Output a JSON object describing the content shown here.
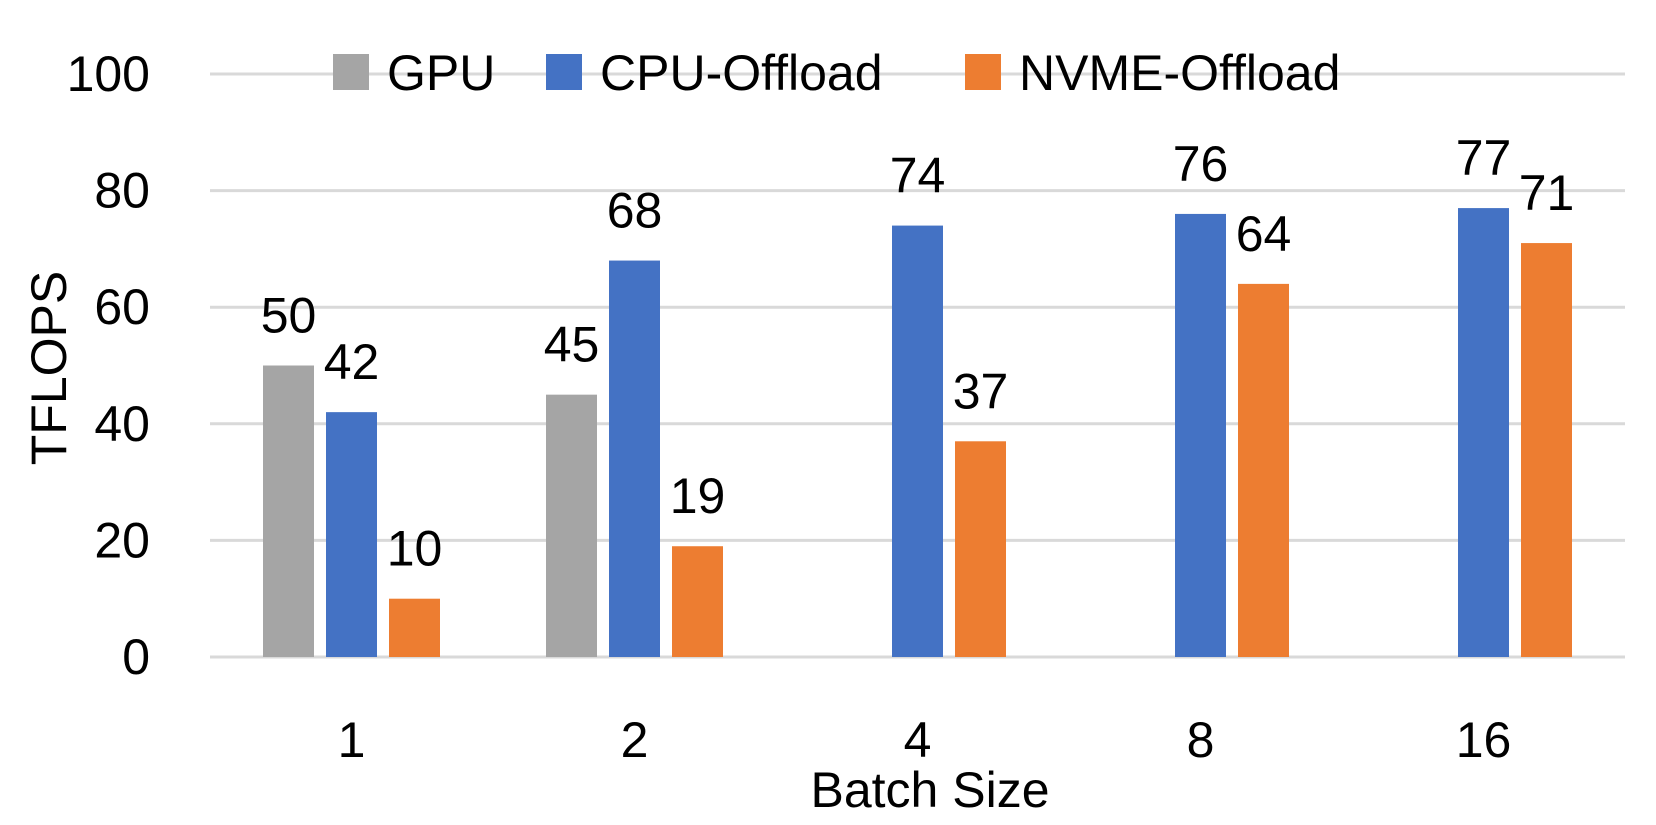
{
  "chart_data": {
    "type": "bar",
    "title": "",
    "xlabel": "Batch Size",
    "ylabel": "TFLOPS",
    "categories": [
      "1",
      "2",
      "4",
      "8",
      "16"
    ],
    "ylim": [
      0,
      100
    ],
    "yticks": [
      0,
      20,
      40,
      60,
      80,
      100
    ],
    "ytick_labels": [
      "0",
      "20",
      "40",
      "60",
      "80",
      "100"
    ],
    "grid": true,
    "legend_position": "top",
    "series": [
      {
        "name": "GPU",
        "color": "#A5A5A5",
        "values": [
          50,
          45,
          null,
          null,
          null
        ],
        "labels": [
          "50",
          "45",
          null,
          null,
          null
        ]
      },
      {
        "name": "CPU-Offload",
        "color": "#4472C4",
        "values": [
          42,
          68,
          74,
          76,
          77
        ],
        "labels": [
          "42",
          "68",
          "74",
          "76",
          "77"
        ]
      },
      {
        "name": "NVME-Offload",
        "color": "#ED7D31",
        "values": [
          10,
          19,
          37,
          64,
          71
        ],
        "labels": [
          "10",
          "19",
          "37",
          "64",
          "71"
        ]
      }
    ]
  }
}
